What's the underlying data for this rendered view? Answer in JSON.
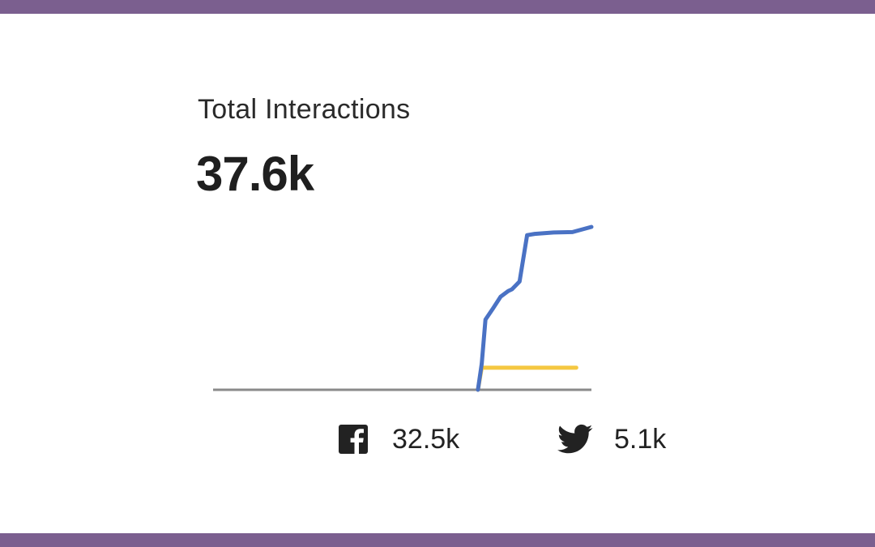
{
  "frame": {
    "border_color": "#7b5f8f"
  },
  "header": {
    "title": "Total Interactions",
    "total": "37.6k"
  },
  "legend": [
    {
      "icon": "facebook-icon",
      "value": "32.5k",
      "color": "#4a72c4"
    },
    {
      "icon": "twitter-icon",
      "value": "5.1k",
      "color": "#f5c842"
    }
  ],
  "chart_data": {
    "type": "line",
    "grid": false,
    "baseline_color": "#8a8a8a",
    "ylim": [
      0,
      37600
    ],
    "series": [
      {
        "name": "Facebook",
        "color": "#4a72c4",
        "x": [
          0,
          0.7,
          0.71,
          0.72,
          0.74,
          0.76,
          0.78,
          0.79,
          0.81,
          0.83,
          0.85,
          0.9,
          0.95,
          1.0
        ],
        "y": [
          0,
          0,
          6000,
          16200,
          18800,
          21500,
          22800,
          23200,
          25000,
          35700,
          36000,
          36300,
          36400,
          37600
        ]
      },
      {
        "name": "Twitter",
        "color": "#f5c842",
        "x": [
          0,
          0.7,
          0.71,
          0.72,
          0.96
        ],
        "y": [
          0,
          0,
          5100,
          5100,
          5100
        ]
      }
    ]
  }
}
